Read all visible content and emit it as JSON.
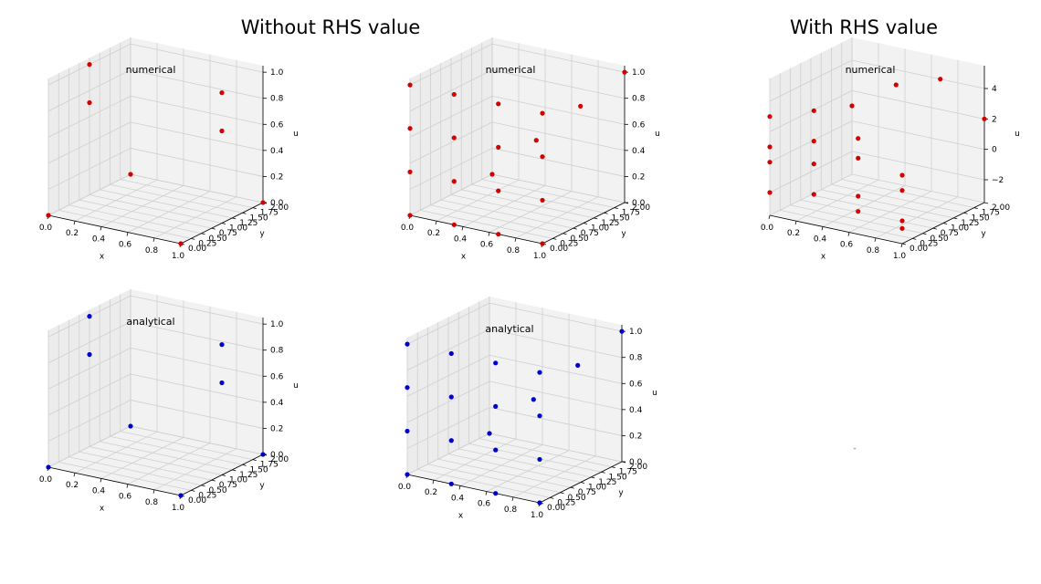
{
  "suptitles": {
    "left": "Without RHS value",
    "right": "With RHS value"
  },
  "colors": {
    "numerical": "#d40000",
    "analytical": "#0000cc",
    "pane": "#f2f2f2",
    "grid": "#cfcfcf"
  },
  "chart_data": [
    {
      "type": "scatter",
      "projection": "3d",
      "title": "numerical",
      "xlabel": "x",
      "ylabel": "y",
      "zlabel": "u",
      "xlim": [
        0,
        1
      ],
      "ylim": [
        0,
        2
      ],
      "zlim": [
        0,
        1.05
      ],
      "xticks": [
        "0.0",
        "0.2",
        "0.4",
        "0.6",
        "0.8",
        "1.0"
      ],
      "yticks": [
        "0.00",
        "0.25",
        "0.50",
        "0.75",
        "1.00",
        "1.25",
        "1.50",
        "1.75",
        "2.00"
      ],
      "zticks": [
        "0.0",
        "0.2",
        "0.4",
        "0.6",
        "0.8",
        "1.0"
      ],
      "color": "red",
      "points": [
        [
          0,
          0,
          0
        ],
        [
          1,
          0,
          0
        ],
        [
          0,
          2,
          0
        ],
        [
          1,
          2,
          0
        ],
        [
          0,
          1,
          0.707
        ],
        [
          1,
          1,
          0.707
        ],
        [
          0,
          1,
          1
        ],
        [
          1,
          1,
          1
        ]
      ]
    },
    {
      "type": "scatter",
      "projection": "3d",
      "title": "numerical",
      "xlabel": "x",
      "ylabel": "y",
      "zlabel": "u",
      "xlim": [
        0,
        1
      ],
      "ylim": [
        0,
        2
      ],
      "zlim": [
        0,
        1.05
      ],
      "xticks": [
        "0.0",
        "0.2",
        "0.4",
        "0.6",
        "0.8",
        "1.0"
      ],
      "yticks": [
        "0.00",
        "0.25",
        "0.50",
        "0.75",
        "1.00",
        "1.25",
        "1.50",
        "1.75",
        "2.00"
      ],
      "zticks": [
        "0.0",
        "0.2",
        "0.4",
        "0.6",
        "0.8",
        "1.0"
      ],
      "color": "red",
      "points": [
        [
          0,
          0,
          0
        ],
        [
          0.333,
          0,
          0
        ],
        [
          0.667,
          0,
          0
        ],
        [
          1,
          0,
          0
        ],
        [
          0,
          0,
          0.333
        ],
        [
          0.333,
          0,
          0.333
        ],
        [
          0.667,
          0,
          0.333
        ],
        [
          1,
          0,
          0.333
        ],
        [
          0,
          0,
          0.667
        ],
        [
          0.333,
          0,
          0.667
        ],
        [
          0.667,
          0,
          0.667
        ],
        [
          1,
          0,
          0.667
        ],
        [
          0,
          0,
          1
        ],
        [
          0.333,
          0,
          1
        ],
        [
          0.667,
          0,
          1
        ],
        [
          1,
          0,
          1
        ],
        [
          0,
          2,
          0
        ],
        [
          0.333,
          2,
          0.333
        ],
        [
          0.667,
          2,
          0.667
        ],
        [
          1,
          2,
          1
        ]
      ]
    },
    {
      "type": "scatter",
      "projection": "3d",
      "title": "numerical",
      "xlabel": "x",
      "ylabel": "y",
      "zlabel": "u",
      "xlim": [
        0,
        1
      ],
      "ylim": [
        0,
        2
      ],
      "zlim": [
        -3.5,
        5.5
      ],
      "xticks": [
        "0.0",
        "0.2",
        "0.4",
        "0.6",
        "0.8",
        "1.0"
      ],
      "yticks": [
        "0.00",
        "0.25",
        "0.50",
        "0.75",
        "1.00",
        "1.25",
        "1.50",
        "1.75",
        "2.00"
      ],
      "zticks": [
        "−2",
        "0",
        "2",
        "4"
      ],
      "zticks_values": [
        -2,
        0,
        2,
        4
      ],
      "color": "red",
      "points": [
        [
          0,
          0,
          -2
        ],
        [
          0.333,
          0,
          -1.5
        ],
        [
          0.667,
          0,
          -2
        ],
        [
          1,
          0,
          -2.5
        ],
        [
          0,
          0,
          0
        ],
        [
          0.333,
          0,
          0.5
        ],
        [
          0.667,
          0,
          -1
        ],
        [
          1,
          0,
          -2
        ],
        [
          0,
          0,
          1
        ],
        [
          0.333,
          0,
          2
        ],
        [
          0.667,
          0,
          1.5
        ],
        [
          1,
          0,
          0
        ],
        [
          0,
          0,
          3
        ],
        [
          0.333,
          0,
          4
        ],
        [
          0.667,
          0,
          2.8
        ],
        [
          1,
          0,
          1
        ],
        [
          0,
          2,
          1
        ],
        [
          0.333,
          2,
          3
        ],
        [
          0.667,
          2,
          4
        ],
        [
          1,
          2,
          2
        ]
      ]
    },
    {
      "type": "scatter",
      "projection": "3d",
      "title": "analytical",
      "xlabel": "x",
      "ylabel": "y",
      "zlabel": "u",
      "xlim": [
        0,
        1
      ],
      "ylim": [
        0,
        2
      ],
      "zlim": [
        0,
        1.05
      ],
      "xticks": [
        "0.0",
        "0.2",
        "0.4",
        "0.6",
        "0.8",
        "1.0"
      ],
      "yticks": [
        "0.00",
        "0.25",
        "0.50",
        "0.75",
        "1.00",
        "1.25",
        "1.50",
        "1.75",
        "2.00"
      ],
      "zticks": [
        "0.0",
        "0.2",
        "0.4",
        "0.6",
        "0.8",
        "1.0"
      ],
      "color": "blue",
      "points": [
        [
          0,
          0,
          0
        ],
        [
          1,
          0,
          0
        ],
        [
          0,
          2,
          0
        ],
        [
          1,
          2,
          0
        ],
        [
          0,
          1,
          0.707
        ],
        [
          1,
          1,
          0.707
        ],
        [
          0,
          1,
          1
        ],
        [
          1,
          1,
          1
        ]
      ]
    },
    {
      "type": "scatter",
      "projection": "3d",
      "title": "analytical",
      "xlabel": "x",
      "ylabel": "y",
      "zlabel": "u",
      "xlim": [
        0,
        1
      ],
      "ylim": [
        0,
        2
      ],
      "zlim": [
        0,
        1.05
      ],
      "xticks": [
        "0.0",
        "0.2",
        "0.4",
        "0.6",
        "0.8",
        "1.0"
      ],
      "yticks": [
        "0.00",
        "0.25",
        "0.50",
        "0.75",
        "1.00",
        "1.25",
        "1.50",
        "1.75",
        "2.00"
      ],
      "zticks": [
        "0.0",
        "0.2",
        "0.4",
        "0.6",
        "0.8",
        "1.0"
      ],
      "color": "blue",
      "points": [
        [
          0,
          0,
          0
        ],
        [
          0.333,
          0,
          0
        ],
        [
          0.667,
          0,
          0
        ],
        [
          1,
          0,
          0
        ],
        [
          0,
          0,
          0.333
        ],
        [
          0.333,
          0,
          0.333
        ],
        [
          0.667,
          0,
          0.333
        ],
        [
          1,
          0,
          0.333
        ],
        [
          0,
          0,
          0.667
        ],
        [
          0.333,
          0,
          0.667
        ],
        [
          0.667,
          0,
          0.667
        ],
        [
          1,
          0,
          0.667
        ],
        [
          0,
          0,
          1
        ],
        [
          0.333,
          0,
          1
        ],
        [
          0.667,
          0,
          1
        ],
        [
          1,
          0,
          1
        ],
        [
          0,
          2,
          0
        ],
        [
          0.333,
          2,
          0.333
        ],
        [
          0.667,
          2,
          0.667
        ],
        [
          1,
          2,
          1
        ]
      ]
    }
  ],
  "empty_panel_label": "-"
}
